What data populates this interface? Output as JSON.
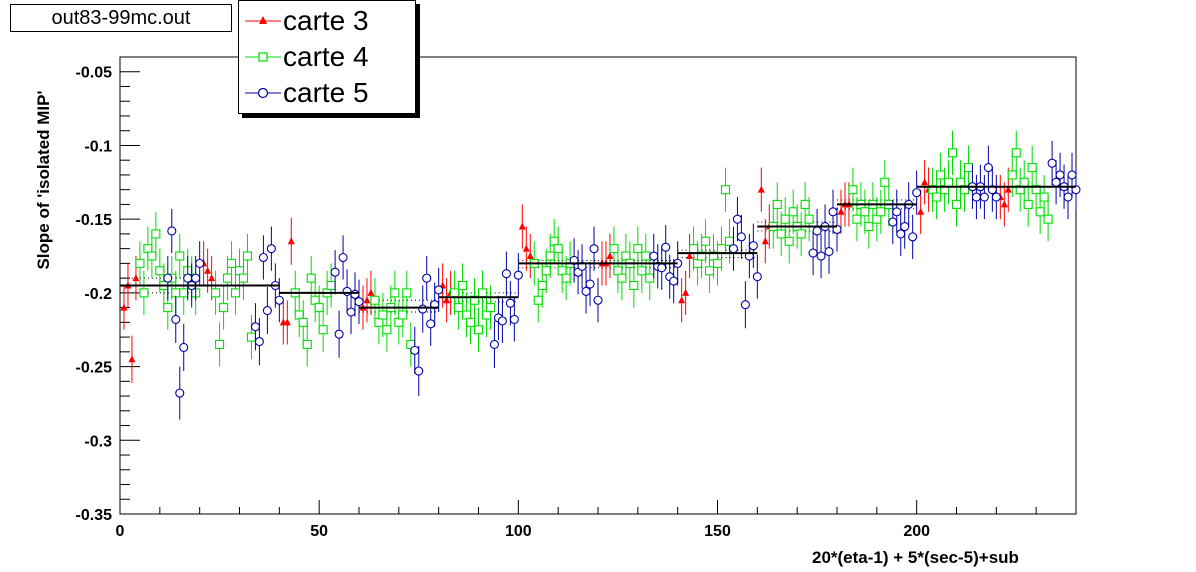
{
  "title_box": "out83-99mc.out",
  "chart_data": {
    "type": "scatter",
    "xlabel": "20*(eta-1) + 5*(sec-5)+sub",
    "ylabel": "Slope of 'isolated MIP'",
    "xlim": [
      0,
      240
    ],
    "ylim": [
      -0.35,
      -0.04
    ],
    "x_ticks": [
      0,
      50,
      100,
      150,
      200
    ],
    "y_ticks": [
      -0.35,
      -0.3,
      -0.25,
      -0.2,
      -0.15,
      -0.1,
      -0.05
    ],
    "y_tick_labels": [
      "-0.35",
      "-0.3",
      "-0.25",
      "-0.2",
      "-0.15",
      "-0.1",
      "-0.05"
    ],
    "grid": false,
    "legend_position": "top-left",
    "series": [
      {
        "name": "carte 3",
        "color": "#ff0000",
        "marker": "triangle",
        "x": [
          1,
          2,
          3,
          4,
          21,
          22,
          23,
          41,
          42,
          43,
          61,
          62,
          63,
          81,
          82,
          83,
          101,
          102,
          103,
          121,
          122,
          123,
          141,
          142,
          143,
          161,
          162,
          163,
          181,
          182,
          183,
          201,
          202,
          203,
          221,
          222,
          223
        ],
        "y": [
          -0.21,
          -0.195,
          -0.245,
          -0.19,
          -0.18,
          -0.185,
          -0.19,
          -0.22,
          -0.22,
          -0.165,
          -0.21,
          -0.205,
          -0.2,
          -0.195,
          -0.205,
          -0.2,
          -0.155,
          -0.17,
          -0.175,
          -0.18,
          -0.18,
          -0.175,
          -0.205,
          -0.2,
          -0.175,
          -0.13,
          -0.165,
          -0.155,
          -0.145,
          -0.14,
          -0.14,
          -0.145,
          -0.125,
          -0.13,
          -0.135,
          -0.14,
          -0.13
        ],
        "err": [
          0.015,
          0.015,
          0.016,
          0.015,
          0.015,
          0.015,
          0.015,
          0.015,
          0.015,
          0.016,
          0.015,
          0.015,
          0.015,
          0.015,
          0.015,
          0.015,
          0.015,
          0.015,
          0.015,
          0.015,
          0.015,
          0.015,
          0.015,
          0.015,
          0.015,
          0.015,
          0.015,
          0.015,
          0.015,
          0.015,
          0.015,
          0.015,
          0.015,
          0.015,
          0.015,
          0.015,
          0.015
        ]
      },
      {
        "name": "carte 4",
        "color": "#00dd00",
        "marker": "open-square",
        "x": [
          5,
          6,
          7,
          8,
          9,
          10,
          11,
          12,
          13,
          14,
          15,
          16,
          17,
          18,
          19,
          24,
          25,
          26,
          27,
          28,
          29,
          30,
          31,
          32,
          33,
          44,
          45,
          46,
          47,
          48,
          49,
          50,
          51,
          52,
          53,
          64,
          65,
          66,
          67,
          68,
          69,
          70,
          71,
          72,
          73,
          84,
          85,
          86,
          87,
          88,
          89,
          90,
          91,
          92,
          93,
          104,
          105,
          106,
          107,
          108,
          109,
          110,
          111,
          112,
          113,
          124,
          125,
          126,
          127,
          128,
          129,
          130,
          131,
          132,
          133,
          144,
          145,
          146,
          147,
          148,
          149,
          150,
          151,
          152,
          153,
          164,
          165,
          166,
          167,
          168,
          169,
          170,
          171,
          172,
          173,
          184,
          185,
          186,
          187,
          188,
          189,
          190,
          191,
          192,
          193,
          204,
          205,
          206,
          207,
          208,
          209,
          210,
          211,
          212,
          213,
          224,
          225,
          226,
          227,
          228,
          229,
          230,
          231,
          232,
          233
        ],
        "y": [
          -0.18,
          -0.2,
          -0.17,
          -0.175,
          -0.16,
          -0.185,
          -0.195,
          -0.21,
          -0.19,
          -0.2,
          -0.175,
          -0.2,
          -0.185,
          -0.19,
          -0.2,
          -0.2,
          -0.235,
          -0.21,
          -0.19,
          -0.18,
          -0.2,
          -0.185,
          -0.19,
          -0.175,
          -0.23,
          -0.2,
          -0.215,
          -0.22,
          -0.235,
          -0.19,
          -0.205,
          -0.21,
          -0.225,
          -0.2,
          -0.195,
          -0.205,
          -0.22,
          -0.215,
          -0.225,
          -0.21,
          -0.2,
          -0.22,
          -0.215,
          -0.2,
          -0.235,
          -0.2,
          -0.21,
          -0.195,
          -0.215,
          -0.22,
          -0.205,
          -0.225,
          -0.2,
          -0.215,
          -0.21,
          -0.18,
          -0.205,
          -0.195,
          -0.185,
          -0.175,
          -0.165,
          -0.17,
          -0.185,
          -0.19,
          -0.18,
          -0.17,
          -0.185,
          -0.19,
          -0.175,
          -0.18,
          -0.195,
          -0.17,
          -0.185,
          -0.175,
          -0.19,
          -0.17,
          -0.18,
          -0.175,
          -0.165,
          -0.185,
          -0.175,
          -0.18,
          -0.17,
          -0.13,
          -0.165,
          -0.155,
          -0.14,
          -0.16,
          -0.15,
          -0.165,
          -0.145,
          -0.155,
          -0.16,
          -0.14,
          -0.15,
          -0.13,
          -0.15,
          -0.14,
          -0.145,
          -0.155,
          -0.14,
          -0.15,
          -0.145,
          -0.125,
          -0.14,
          -0.13,
          -0.135,
          -0.12,
          -0.13,
          -0.125,
          -0.105,
          -0.14,
          -0.125,
          -0.13,
          -0.115,
          -0.12,
          -0.105,
          -0.13,
          -0.125,
          -0.14,
          -0.115,
          -0.13,
          -0.145,
          -0.135,
          -0.15
        ],
        "err": [
          0.015,
          0.015,
          0.015,
          0.015,
          0.015,
          0.015,
          0.015,
          0.015,
          0.015,
          0.015,
          0.015,
          0.015,
          0.015,
          0.015,
          0.015,
          0.015,
          0.015,
          0.015,
          0.015,
          0.015,
          0.015,
          0.015,
          0.015,
          0.015,
          0.015,
          0.015,
          0.015,
          0.015,
          0.015,
          0.015,
          0.015,
          0.015,
          0.015,
          0.015,
          0.015,
          0.015,
          0.015,
          0.015,
          0.015,
          0.015,
          0.015,
          0.015,
          0.015,
          0.015,
          0.015,
          0.015,
          0.015,
          0.015,
          0.015,
          0.015,
          0.015,
          0.015,
          0.015,
          0.015,
          0.015,
          0.015,
          0.015,
          0.015,
          0.015,
          0.015,
          0.015,
          0.015,
          0.015,
          0.015,
          0.015,
          0.015,
          0.015,
          0.015,
          0.015,
          0.015,
          0.015,
          0.015,
          0.015,
          0.015,
          0.015,
          0.015,
          0.015,
          0.015,
          0.015,
          0.015,
          0.015,
          0.015,
          0.015,
          0.015,
          0.015,
          0.015,
          0.015,
          0.015,
          0.015,
          0.015,
          0.015,
          0.015,
          0.015,
          0.015,
          0.015,
          0.015,
          0.015,
          0.015,
          0.015,
          0.015,
          0.015,
          0.015,
          0.015,
          0.015,
          0.015,
          0.015,
          0.015,
          0.015,
          0.015,
          0.015,
          0.015,
          0.015,
          0.015,
          0.015,
          0.015,
          0.015,
          0.015,
          0.015,
          0.015,
          0.015,
          0.015,
          0.015,
          0.015,
          0.015,
          0.015
        ]
      },
      {
        "name": "carte 5",
        "color": "#0000aa",
        "marker": "open-circle",
        "x": [
          12,
          13,
          14,
          15,
          16,
          17,
          18,
          19,
          20,
          34,
          35,
          36,
          37,
          38,
          39,
          40,
          54,
          55,
          56,
          57,
          58,
          59,
          60,
          74,
          75,
          76,
          77,
          78,
          79,
          80,
          94,
          95,
          96,
          97,
          98,
          99,
          100,
          114,
          115,
          116,
          117,
          118,
          119,
          120,
          134,
          135,
          136,
          137,
          138,
          139,
          140,
          154,
          155,
          156,
          157,
          158,
          159,
          160,
          174,
          175,
          176,
          177,
          178,
          179,
          180,
          194,
          195,
          196,
          197,
          198,
          199,
          200,
          214,
          215,
          216,
          217,
          218,
          219,
          220,
          234,
          235,
          236,
          237,
          238,
          239,
          240
        ],
        "y": [
          -0.19,
          -0.158,
          -0.218,
          -0.268,
          -0.237,
          -0.19,
          -0.195,
          -0.19,
          -0.18,
          -0.223,
          -0.233,
          -0.176,
          -0.212,
          -0.17,
          -0.195,
          -0.205,
          -0.186,
          -0.228,
          -0.176,
          -0.199,
          -0.213,
          -0.201,
          -0.206,
          -0.239,
          -0.253,
          -0.211,
          -0.19,
          -0.221,
          -0.208,
          -0.198,
          -0.235,
          -0.217,
          -0.219,
          -0.187,
          -0.207,
          -0.218,
          -0.188,
          -0.178,
          -0.186,
          -0.182,
          -0.199,
          -0.194,
          -0.17,
          -0.205,
          -0.175,
          -0.182,
          -0.183,
          -0.169,
          -0.189,
          -0.192,
          -0.18,
          -0.17,
          -0.15,
          -0.162,
          -0.208,
          -0.175,
          -0.168,
          -0.189,
          -0.173,
          -0.158,
          -0.175,
          -0.155,
          -0.172,
          -0.145,
          -0.157,
          -0.152,
          -0.145,
          -0.16,
          -0.155,
          -0.14,
          -0.162,
          -0.132,
          -0.128,
          -0.135,
          -0.128,
          -0.135,
          -0.115,
          -0.13,
          -0.135,
          -0.112,
          -0.125,
          -0.12,
          -0.128,
          -0.135,
          -0.12,
          -0.13
        ],
        "err": [
          0.015,
          0.015,
          0.016,
          0.018,
          0.016,
          0.015,
          0.015,
          0.015,
          0.015,
          0.016,
          0.016,
          0.015,
          0.016,
          0.015,
          0.015,
          0.015,
          0.015,
          0.016,
          0.015,
          0.015,
          0.015,
          0.015,
          0.015,
          0.016,
          0.017,
          0.016,
          0.015,
          0.015,
          0.015,
          0.015,
          0.016,
          0.015,
          0.015,
          0.015,
          0.015,
          0.015,
          0.015,
          0.015,
          0.015,
          0.015,
          0.015,
          0.015,
          0.015,
          0.015,
          0.015,
          0.015,
          0.015,
          0.015,
          0.015,
          0.015,
          0.015,
          0.015,
          0.015,
          0.015,
          0.016,
          0.015,
          0.015,
          0.015,
          0.015,
          0.015,
          0.015,
          0.015,
          0.015,
          0.015,
          0.015,
          0.015,
          0.015,
          0.015,
          0.015,
          0.015,
          0.015,
          0.015,
          0.015,
          0.015,
          0.015,
          0.015,
          0.015,
          0.015,
          0.015,
          0.015,
          0.015,
          0.015,
          0.015,
          0.015,
          0.015,
          0.015
        ]
      }
    ],
    "segment_means": [
      {
        "x0": 0,
        "x1": 40,
        "y": -0.195
      },
      {
        "x0": 40,
        "x1": 60,
        "y": -0.2
      },
      {
        "x0": 60,
        "x1": 80,
        "y": -0.21
      },
      {
        "x0": 80,
        "x1": 100,
        "y": -0.203
      },
      {
        "x0": 100,
        "x1": 120,
        "y": -0.18
      },
      {
        "x0": 120,
        "x1": 140,
        "y": -0.18
      },
      {
        "x0": 140,
        "x1": 160,
        "y": -0.173
      },
      {
        "x0": 160,
        "x1": 180,
        "y": -0.155
      },
      {
        "x0": 180,
        "x1": 200,
        "y": -0.14
      },
      {
        "x0": 200,
        "x1": 220,
        "y": -0.128
      },
      {
        "x0": 220,
        "x1": 240,
        "y": -0.128
      }
    ],
    "segment_dotted": [
      {
        "x0": 0,
        "x1": 20,
        "y": -0.19
      },
      {
        "x0": 0,
        "x1": 20,
        "y": -0.2
      },
      {
        "x0": 60,
        "x1": 80,
        "y": -0.205
      },
      {
        "x0": 60,
        "x1": 80,
        "y": -0.213
      },
      {
        "x0": 80,
        "x1": 100,
        "y": -0.2
      },
      {
        "x0": 80,
        "x1": 100,
        "y": -0.206
      },
      {
        "x0": 100,
        "x1": 120,
        "y": -0.178
      },
      {
        "x0": 100,
        "x1": 120,
        "y": -0.183
      },
      {
        "x0": 120,
        "x1": 140,
        "y": -0.178
      },
      {
        "x0": 120,
        "x1": 140,
        "y": -0.183
      },
      {
        "x0": 140,
        "x1": 160,
        "y": -0.171
      },
      {
        "x0": 140,
        "x1": 160,
        "y": -0.176
      },
      {
        "x0": 160,
        "x1": 180,
        "y": -0.152
      },
      {
        "x0": 160,
        "x1": 180,
        "y": -0.158
      },
      {
        "x0": 180,
        "x1": 200,
        "y": -0.137
      },
      {
        "x0": 180,
        "x1": 200,
        "y": -0.143
      }
    ]
  }
}
